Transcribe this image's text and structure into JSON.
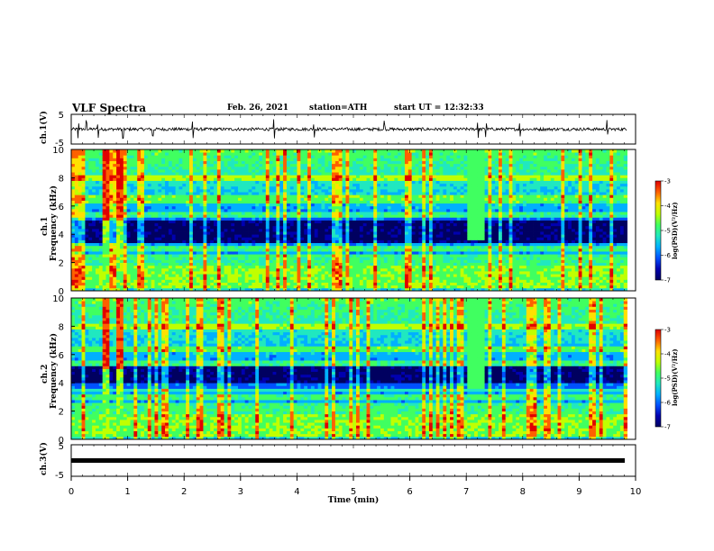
{
  "header": {
    "title": "VLF Spectra",
    "date": "Feb. 26, 2021",
    "station": "station=ATH",
    "start": "start UT =  12:32:33"
  },
  "colors": {
    "waveform": "#000000",
    "colormap": [
      "#000060",
      "#0000b0",
      "#0050ff",
      "#00b0ff",
      "#20e8c0",
      "#40ff60",
      "#c0ff00",
      "#ffe000",
      "#ff6000",
      "#e00000"
    ]
  },
  "chart_data": [
    {
      "type": "line",
      "name": "ch1-waveform",
      "ylabel": "ch.1(V)",
      "ylim": [
        -5,
        5
      ],
      "yticks": [
        "5",
        "-5"
      ],
      "xlim": [
        0,
        10
      ],
      "baseline": 0,
      "noise_amplitude": 0.8,
      "spikes_min": [
        0.12,
        0.27,
        0.48,
        0.92,
        1.45,
        2.15,
        3.6,
        4.3,
        5.55,
        7.2,
        7.35,
        7.95,
        9.5
      ]
    },
    {
      "type": "heatmap",
      "name": "ch1-spectrogram",
      "ylabel": "ch.1\nFrequency (kHz)",
      "ylim": [
        0,
        10
      ],
      "yticks": [
        "0",
        "2",
        "4",
        "6",
        "8",
        "10"
      ],
      "xlim": [
        0,
        9.85
      ],
      "colorbar": {
        "label": "log(PSD)(V²/Hz)",
        "range": [
          -7,
          -3
        ],
        "ticks": [
          "-3",
          "-4",
          "-5",
          "-6",
          "-7"
        ]
      },
      "features": {
        "strong_impulse_min": [
          0.62,
          0.88
        ],
        "burst": {
          "t": [
            7.0,
            7.35
          ],
          "f_khz": [
            3.6,
            10.0
          ]
        },
        "quiet_band_khz": [
          3.5,
          5.0
        ],
        "harmonic_lines_khz": [
          0.4,
          0.8,
          1.0,
          1.2,
          1.5,
          1.8,
          2.2,
          2.5,
          3.0,
          5.4,
          6.4,
          6.7,
          8.0
        ]
      }
    },
    {
      "type": "heatmap",
      "name": "ch2-spectrogram",
      "ylabel": "ch.2\nFrequency (kHz)",
      "ylim": [
        0,
        10
      ],
      "yticks": [
        "0",
        "2",
        "4",
        "6",
        "8",
        "10"
      ],
      "xlim": [
        0,
        9.85
      ],
      "colorbar": {
        "label": "log(PSD)(V²/Hz)",
        "range": [
          -7,
          -3
        ],
        "ticks": [
          "-3",
          "-4",
          "-5",
          "-6",
          "-7"
        ]
      },
      "features": {
        "strong_impulse_min": [
          0.62,
          0.88
        ],
        "burst": {
          "t": [
            7.0,
            7.35
          ],
          "f_khz": [
            3.6,
            10.0
          ]
        },
        "quiet_band_khz": [
          4.0,
          5.2
        ],
        "harmonic_lines_khz": [
          0.4,
          0.8,
          1.2,
          1.6,
          2.0,
          2.4,
          3.0,
          3.5,
          5.4,
          6.4,
          8.0
        ]
      }
    },
    {
      "type": "line",
      "name": "ch3-waveform",
      "ylabel": "ch.3(V)",
      "ylim": [
        -5,
        5
      ],
      "yticks": [
        "5",
        "-5"
      ],
      "xlim": [
        0,
        9.85
      ],
      "value": 0,
      "xlabel": "Time (min)",
      "xticks": [
        "0",
        "1",
        "2",
        "3",
        "4",
        "5",
        "6",
        "7",
        "8",
        "9",
        "10"
      ]
    }
  ]
}
